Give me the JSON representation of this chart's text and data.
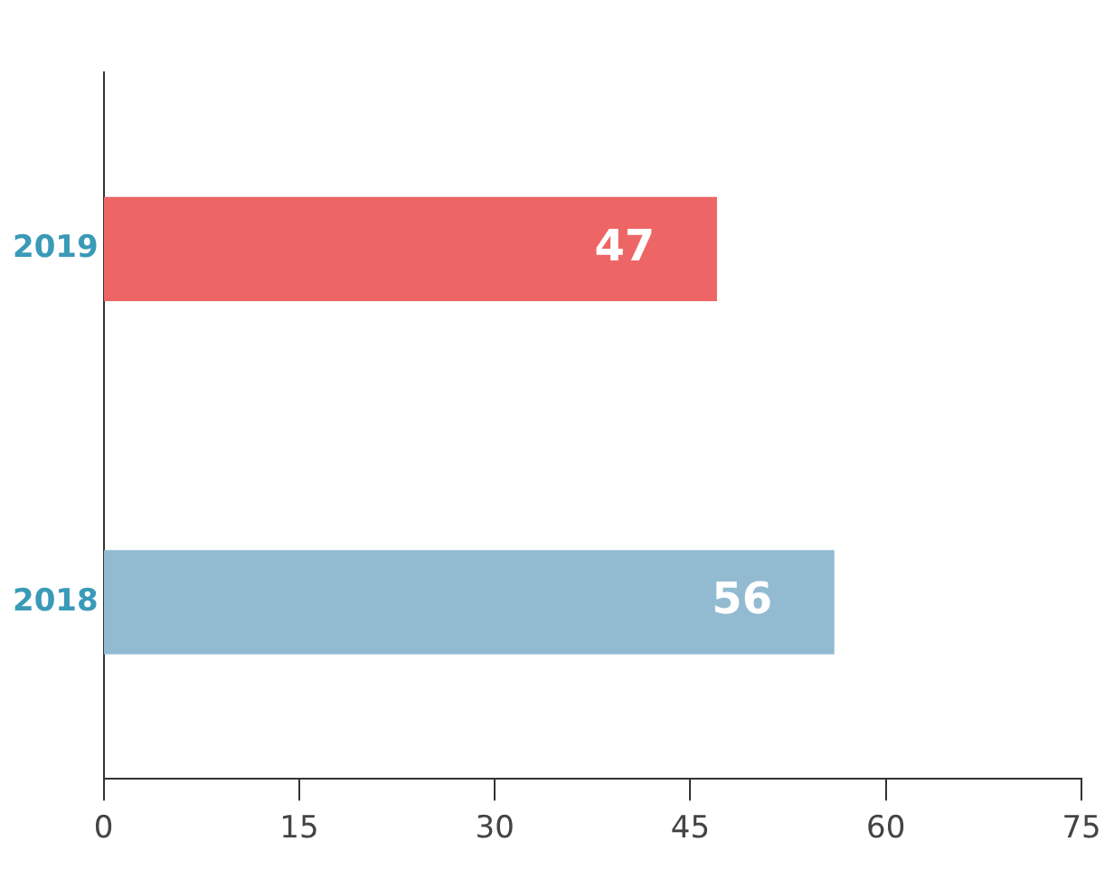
{
  "chart_data": {
    "type": "bar",
    "orientation": "horizontal",
    "categories": [
      "2019",
      "2018"
    ],
    "values": [
      47,
      56
    ],
    "colors": [
      "#ee6565",
      "#92bbd2"
    ],
    "xlim": [
      0,
      75
    ],
    "xticks": [
      0,
      15,
      30,
      45,
      60,
      75
    ],
    "grid": false,
    "legend": false,
    "data_labels": true
  }
}
